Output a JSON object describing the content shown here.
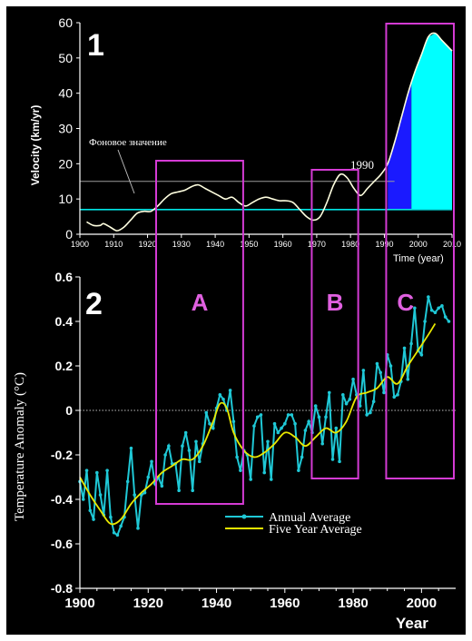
{
  "colors": {
    "background": "#000000",
    "frame_outer": "#ffffff",
    "frame_inner": "#000000",
    "axis": "#ffffff",
    "velocity_line": "#ffffe0",
    "background_line": "#00e5e5",
    "threshold_line": "#9a9a9a",
    "fill_dark": "#1a1aff",
    "fill_light": "#00ffff",
    "annual": "#1fc8d6",
    "five_year": "#e8e800",
    "box": "#d43bd4",
    "panel_number": "#ffffff",
    "box_letter": "#e060e0"
  },
  "panels": {
    "top_number": "1",
    "bottom_number": "2"
  },
  "boxes": [
    {
      "label": "A",
      "x_from": 1922,
      "x_to": 1948
    },
    {
      "label": "B",
      "x_from": 1968,
      "x_to": 1982
    },
    {
      "label": "C",
      "x_from": 1990,
      "x_to": 2010
    }
  ],
  "chart_data": [
    {
      "type": "line",
      "ylabel": "Velocity (km/yr)",
      "xlabel": "Time (year)",
      "xlim": [
        1900,
        2010
      ],
      "ylim": [
        0,
        60
      ],
      "xticks": [
        1900,
        1910,
        1920,
        1930,
        1940,
        1950,
        1960,
        1970,
        1980,
        1990,
        2000,
        2010
      ],
      "yticks": [
        0,
        10,
        20,
        30,
        40,
        50,
        60
      ],
      "annotations": {
        "background_label": "Фоновое значение",
        "year_1990": "1990"
      },
      "background_value": 7,
      "threshold_value": 15,
      "series": [
        {
          "x": [
            1902,
            1904,
            1906,
            1907,
            1909,
            1911,
            1913,
            1915,
            1917,
            1919,
            1921,
            1923,
            1925,
            1927,
            1929,
            1931,
            1933,
            1935,
            1937,
            1939,
            1941,
            1943,
            1945,
            1947,
            1949,
            1951,
            1953,
            1955,
            1957,
            1959,
            1961,
            1963,
            1965,
            1967,
            1969,
            1971,
            1973,
            1975,
            1977,
            1979,
            1981,
            1983,
            1985,
            1987,
            1989,
            1991,
            1993,
            1995,
            1997,
            1999,
            2001,
            2003,
            2005,
            2007,
            2010
          ],
          "values": [
            3.5,
            2.5,
            2.5,
            3,
            2,
            1,
            2,
            4,
            6,
            6.5,
            6.5,
            8,
            10,
            11.5,
            12,
            12.5,
            13.5,
            14,
            13,
            12,
            11,
            10,
            10.5,
            9,
            8,
            9,
            10,
            10.5,
            10,
            9.5,
            9.5,
            9,
            7,
            5,
            4,
            5,
            9,
            14,
            17,
            16,
            13,
            11,
            13,
            15,
            17,
            20,
            26,
            33,
            40,
            46,
            51,
            56,
            57,
            55,
            52
          ]
        }
      ],
      "fill_bands": [
        {
          "x_from": 1991,
          "x_to": 1998,
          "color": "#1a1aff"
        },
        {
          "x_from": 1998,
          "x_to": 2010,
          "color": "#00ffff"
        }
      ]
    },
    {
      "type": "line",
      "ylabel": "Temperature Anomaly (°C)",
      "xlabel": "Year",
      "xlim": [
        1900,
        2010
      ],
      "ylim": [
        -0.8,
        0.6
      ],
      "xticks": [
        1900,
        1920,
        1940,
        1960,
        1980,
        2000
      ],
      "yticks": [
        -0.8,
        -0.6,
        -0.4,
        -0.2,
        0,
        0.2,
        0.4,
        0.6
      ],
      "legend": {
        "placement": "bottom-right",
        "entries": [
          "Annual Average",
          "Five Year Average"
        ]
      },
      "series": [
        {
          "name": "Annual Average",
          "x": [
            1900,
            1901,
            1902,
            1903,
            1904,
            1905,
            1906,
            1907,
            1908,
            1909,
            1910,
            1911,
            1912,
            1913,
            1914,
            1915,
            1916,
            1917,
            1918,
            1919,
            1920,
            1921,
            1922,
            1923,
            1924,
            1925,
            1926,
            1927,
            1928,
            1929,
            1930,
            1931,
            1932,
            1933,
            1934,
            1935,
            1936,
            1937,
            1938,
            1939,
            1940,
            1941,
            1942,
            1943,
            1944,
            1945,
            1946,
            1947,
            1948,
            1949,
            1950,
            1951,
            1952,
            1953,
            1954,
            1955,
            1956,
            1957,
            1958,
            1959,
            1960,
            1961,
            1962,
            1963,
            1964,
            1965,
            1966,
            1967,
            1968,
            1969,
            1970,
            1971,
            1972,
            1973,
            1974,
            1975,
            1976,
            1977,
            1978,
            1979,
            1980,
            1981,
            1982,
            1983,
            1984,
            1985,
            1986,
            1987,
            1988,
            1989,
            1990,
            1991,
            1992,
            1993,
            1994,
            1995,
            1996,
            1997,
            1998,
            1999,
            2000,
            2001,
            2002,
            2003,
            2004,
            2005,
            2006,
            2007,
            2008
          ],
          "values": [
            -0.32,
            -0.4,
            -0.27,
            -0.45,
            -0.49,
            -0.28,
            -0.38,
            -0.47,
            -0.27,
            -0.48,
            -0.55,
            -0.56,
            -0.52,
            -0.48,
            -0.32,
            -0.17,
            -0.38,
            -0.53,
            -0.38,
            -0.37,
            -0.3,
            -0.23,
            -0.33,
            -0.3,
            -0.34,
            -0.2,
            -0.16,
            -0.24,
            -0.24,
            -0.36,
            -0.16,
            -0.1,
            -0.18,
            -0.36,
            -0.14,
            -0.23,
            -0.15,
            -0.01,
            -0.06,
            -0.08,
            0.01,
            0.07,
            0.05,
            0.0,
            0.09,
            -0.05,
            -0.21,
            -0.27,
            -0.18,
            -0.2,
            -0.31,
            -0.07,
            -0.03,
            -0.02,
            -0.28,
            -0.14,
            -0.31,
            -0.06,
            -0.1,
            -0.08,
            -0.06,
            -0.02,
            -0.02,
            -0.06,
            -0.27,
            -0.21,
            -0.09,
            -0.05,
            -0.1,
            0.02,
            -0.03,
            -0.15,
            -0.03,
            0.08,
            -0.22,
            -0.08,
            -0.23,
            0.07,
            0.03,
            0.05,
            0.14,
            0.07,
            0.02,
            0.18,
            -0.02,
            -0.01,
            0.04,
            0.21,
            0.17,
            0.08,
            0.25,
            0.2,
            0.06,
            0.07,
            0.13,
            0.28,
            0.14,
            0.3,
            0.46,
            0.27,
            0.25,
            0.4,
            0.51,
            0.45,
            0.44,
            0.46,
            0.47,
            0.42,
            0.4
          ]
        },
        {
          "name": "Five Year Average",
          "x": [
            1900,
            1903,
            1906,
            1909,
            1912,
            1915,
            1918,
            1921,
            1924,
            1927,
            1930,
            1933,
            1936,
            1939,
            1941,
            1943,
            1945,
            1948,
            1951,
            1954,
            1957,
            1960,
            1963,
            1966,
            1969,
            1972,
            1975,
            1978,
            1981,
            1984,
            1987,
            1990,
            1993,
            1996,
            1999,
            2002,
            2004
          ],
          "values": [
            -0.3,
            -0.38,
            -0.45,
            -0.51,
            -0.49,
            -0.42,
            -0.37,
            -0.33,
            -0.28,
            -0.25,
            -0.22,
            -0.22,
            -0.16,
            -0.05,
            0.03,
            0.01,
            -0.1,
            -0.18,
            -0.21,
            -0.19,
            -0.15,
            -0.1,
            -0.12,
            -0.16,
            -0.12,
            -0.08,
            -0.1,
            -0.05,
            0.06,
            0.08,
            0.1,
            0.15,
            0.12,
            0.2,
            0.27,
            0.34,
            0.39
          ]
        }
      ]
    }
  ]
}
